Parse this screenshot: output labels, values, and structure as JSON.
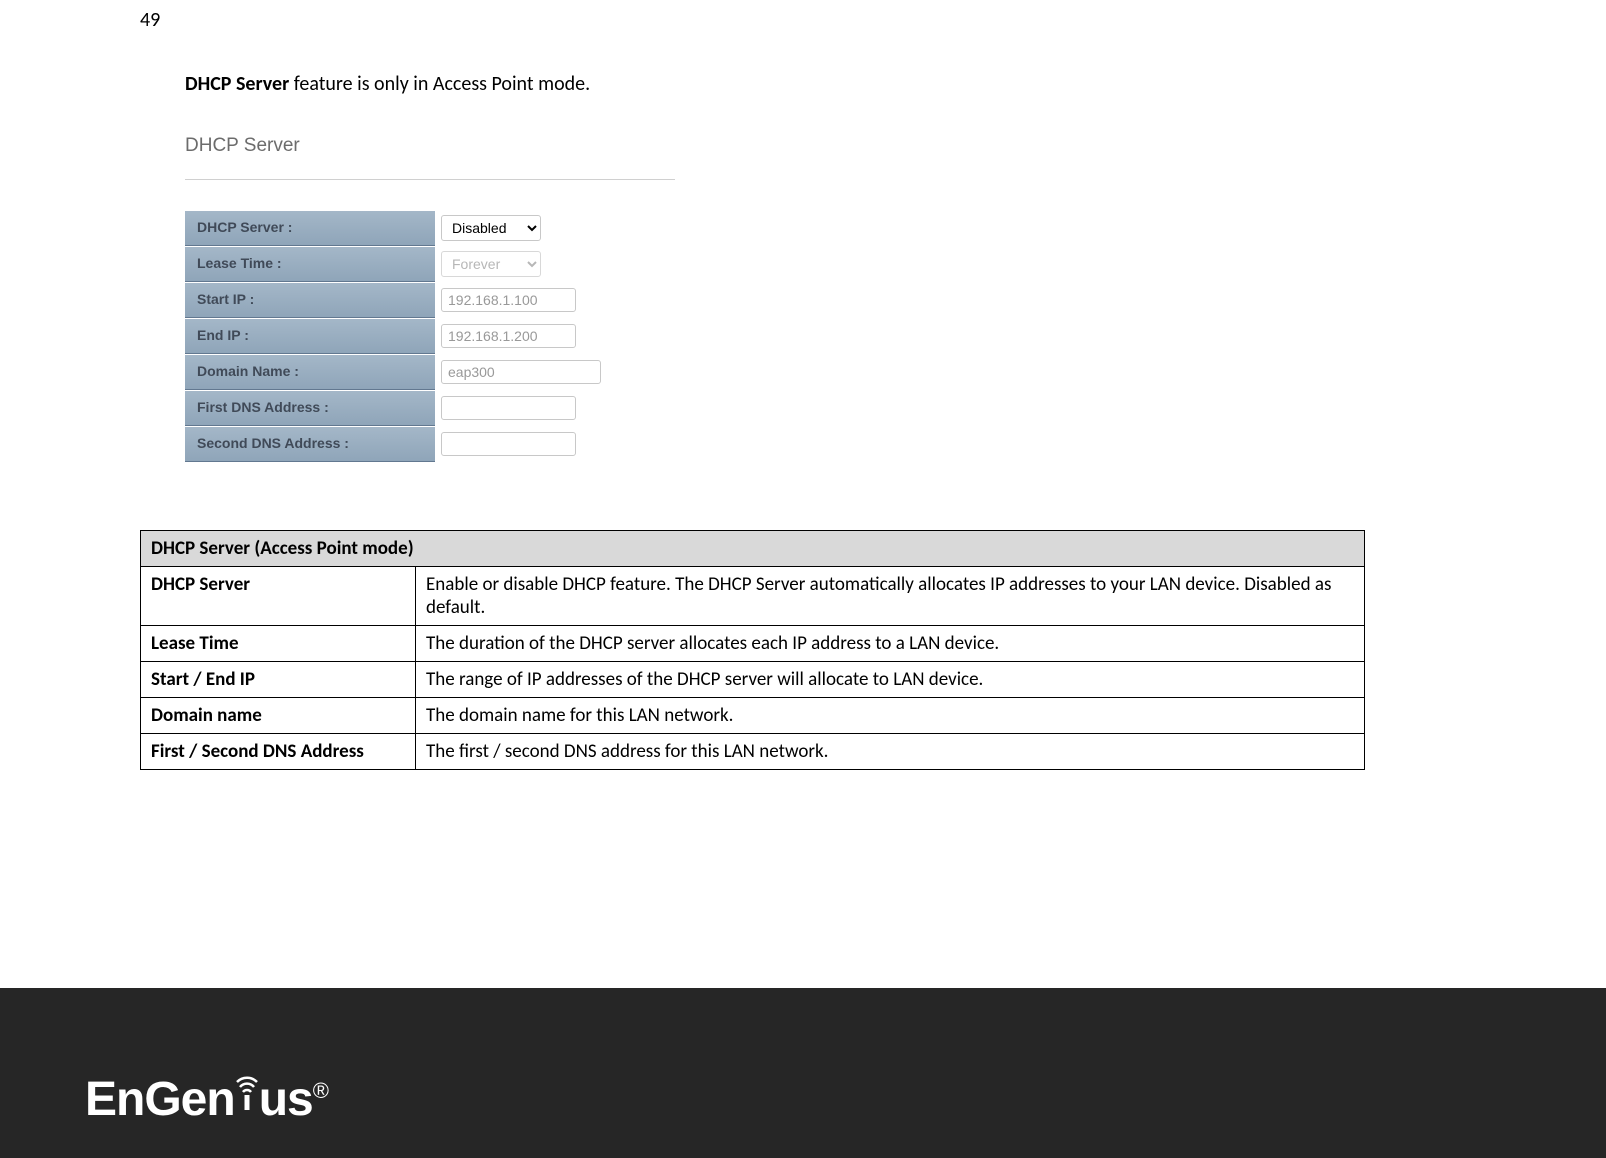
{
  "page_number": "49",
  "intro_bold": "DHCP Server",
  "intro_rest": " feature is only in Access Point mode.",
  "ui": {
    "section_title": "DHCP Server",
    "rows": [
      {
        "label": "DHCP Server :",
        "value": "Disabled",
        "type": "select",
        "cls": "sel-dhcp"
      },
      {
        "label": "Lease Time :",
        "value": "Forever",
        "type": "select_disabled",
        "cls": "sel-lease"
      },
      {
        "label": "Start IP :",
        "value": "192.168.1.100",
        "type": "input",
        "cls": "inp-ip"
      },
      {
        "label": "End IP :",
        "value": "192.168.1.200",
        "type": "input",
        "cls": "inp-ip"
      },
      {
        "label": "Domain Name :",
        "value": "eap300",
        "type": "input",
        "cls": "inp-domain"
      },
      {
        "label": "First DNS Address :",
        "value": "",
        "type": "input",
        "cls": "inp-dns"
      },
      {
        "label": "Second DNS Address :",
        "value": "",
        "type": "input",
        "cls": "inp-dns"
      }
    ]
  },
  "desc": {
    "header": "DHCP Server (Access Point mode)",
    "rows": [
      {
        "k": "DHCP Server",
        "v": "Enable or disable DHCP feature. The DHCP Server automatically allocates IP addresses to your LAN device. Disabled as default."
      },
      {
        "k": "Lease Time",
        "v": "The duration of the DHCP server allocates each IP address to a LAN device."
      },
      {
        "k": "Start / End IP",
        "v": "The range of IP addresses of the DHCP server will allocate to LAN device."
      },
      {
        "k": "Domain name",
        "v": "The domain name for this LAN network."
      },
      {
        "k": "First / Second DNS Address",
        "v": "The first / second DNS address for this LAN network."
      }
    ]
  },
  "logo": {
    "text_a": "EnGen",
    "text_b": "us",
    "reg": "®"
  }
}
